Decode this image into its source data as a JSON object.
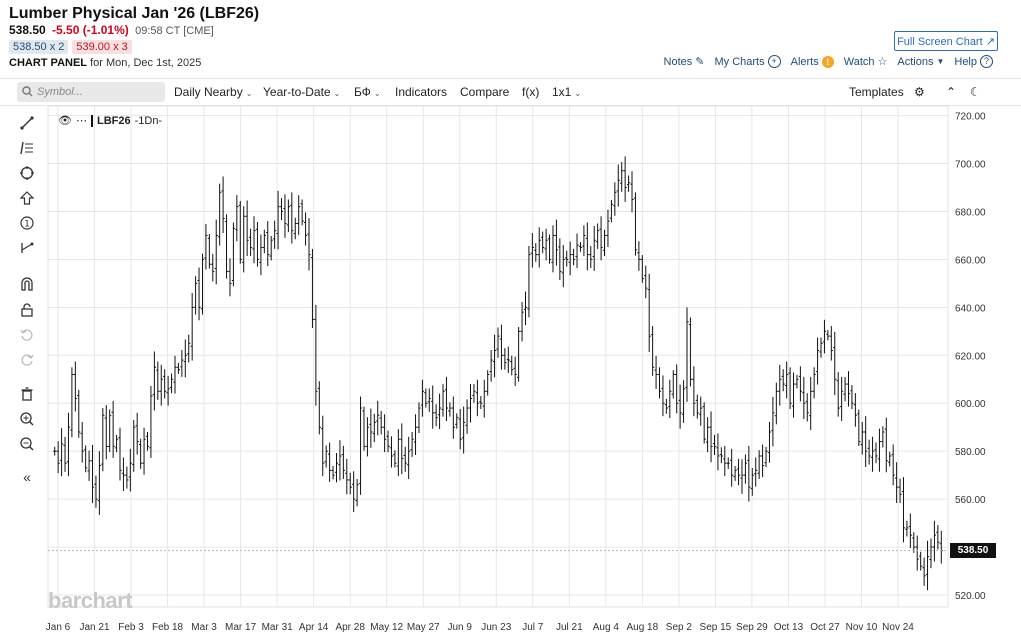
{
  "header": {
    "title": "Lumber Physical Jan '26 (LBF26)",
    "last": "538.50",
    "change": "-5.50 (-1.01%)",
    "time": "09:58 CT [CME]",
    "bid": "538.50 x 2",
    "ask": "539.00 x 3",
    "panel_label": "CHART PANEL",
    "panel_date": "for Mon, Dec 1st, 2025",
    "fullscreen_label": "Full Screen Chart",
    "links": {
      "notes": "Notes",
      "mycharts": "My Charts",
      "alerts": "Alerts",
      "watch": "Watch",
      "actions": "Actions",
      "help": "Help"
    }
  },
  "toolbar": {
    "search_placeholder": "Symbol...",
    "frequency": "Daily Nearby",
    "range": "Year-to-Date",
    "indicators": "Indicators",
    "compare": "Compare",
    "fx": "f(x)",
    "layout": "1x1",
    "templates": "Templates"
  },
  "legend": {
    "symbol": "LBF26",
    "interval": "-1Dn-"
  },
  "brand": "barchart",
  "colors": {
    "accent": "#2a6ebb",
    "down": "#d0021b",
    "grid": "#e6e6e6"
  },
  "chart_data": {
    "type": "ohlc",
    "series_name": "LBF26",
    "x_ticks": [
      "Jan 6",
      "Jan 21",
      "Feb 3",
      "Feb 18",
      "Mar 3",
      "Mar 17",
      "Mar 31",
      "Apr 14",
      "Apr 28",
      "May 12",
      "May 27",
      "Jun 9",
      "Jun 23",
      "Jul 7",
      "Jul 21",
      "Aug 4",
      "Aug 18",
      "Sep 2",
      "Sep 15",
      "Sep 29",
      "Oct 13",
      "Oct 27",
      "Nov 10",
      "Nov 24"
    ],
    "y_ticks": [
      "720.00",
      "700.00",
      "680.00",
      "660.00",
      "640.00",
      "620.00",
      "600.00",
      "580.00",
      "560.00",
      "540.00",
      "520.00"
    ],
    "ylim": [
      515,
      724
    ],
    "last_price_label": "538.50",
    "closes": [
      580,
      575,
      583,
      575,
      590,
      612,
      602,
      588,
      580,
      573,
      576,
      565,
      560,
      574,
      595,
      582,
      595,
      582,
      585,
      572,
      570,
      568,
      575,
      590,
      584,
      575,
      585,
      582,
      603,
      615,
      605,
      610,
      605,
      606,
      610,
      615,
      614,
      618,
      620,
      625,
      640,
      650,
      640,
      660,
      670,
      658,
      655,
      670,
      688,
      677,
      655,
      650,
      673,
      682,
      660,
      678,
      668,
      665,
      672,
      660,
      665,
      670,
      662,
      668,
      672,
      682,
      680,
      675,
      682,
      672,
      675,
      682,
      676,
      670,
      662,
      635,
      605,
      590,
      575,
      580,
      572,
      570,
      575,
      578,
      572,
      568,
      565,
      560,
      566,
      598,
      582,
      590,
      588,
      592,
      595,
      590,
      585,
      582,
      578,
      575,
      585,
      577,
      575,
      580,
      585,
      590,
      598,
      605,
      600,
      602,
      596,
      594,
      598,
      605,
      598,
      598,
      590,
      594,
      585,
      592,
      598,
      602,
      605,
      600,
      600,
      605,
      612,
      618,
      622,
      628,
      620,
      617,
      618,
      614,
      612,
      630,
      638,
      640,
      662,
      665,
      662,
      668,
      665,
      668,
      660,
      670,
      664,
      655,
      660,
      660,
      662,
      660,
      666,
      665,
      670,
      662,
      660,
      668,
      672,
      665,
      670,
      676,
      683,
      688,
      693,
      697,
      690,
      692,
      685,
      664,
      660,
      652,
      648,
      628,
      615,
      612,
      605,
      600,
      598,
      605,
      612,
      600,
      596,
      606,
      634,
      610,
      600,
      596,
      598,
      585,
      590,
      582,
      582,
      578,
      578,
      575,
      575,
      570,
      572,
      570,
      570,
      575,
      565,
      570,
      572,
      578,
      574,
      580,
      588,
      596,
      605,
      610,
      608,
      612,
      600,
      608,
      610,
      605,
      600,
      596,
      605,
      612,
      622,
      625,
      630,
      628,
      622,
      610,
      598,
      605,
      608,
      604,
      600,
      595,
      584,
      588,
      580,
      578,
      580,
      578,
      584,
      588,
      576,
      578,
      570,
      565,
      562,
      548,
      548,
      545,
      540,
      535,
      532,
      528,
      536,
      540,
      545,
      542,
      538.5
    ]
  }
}
